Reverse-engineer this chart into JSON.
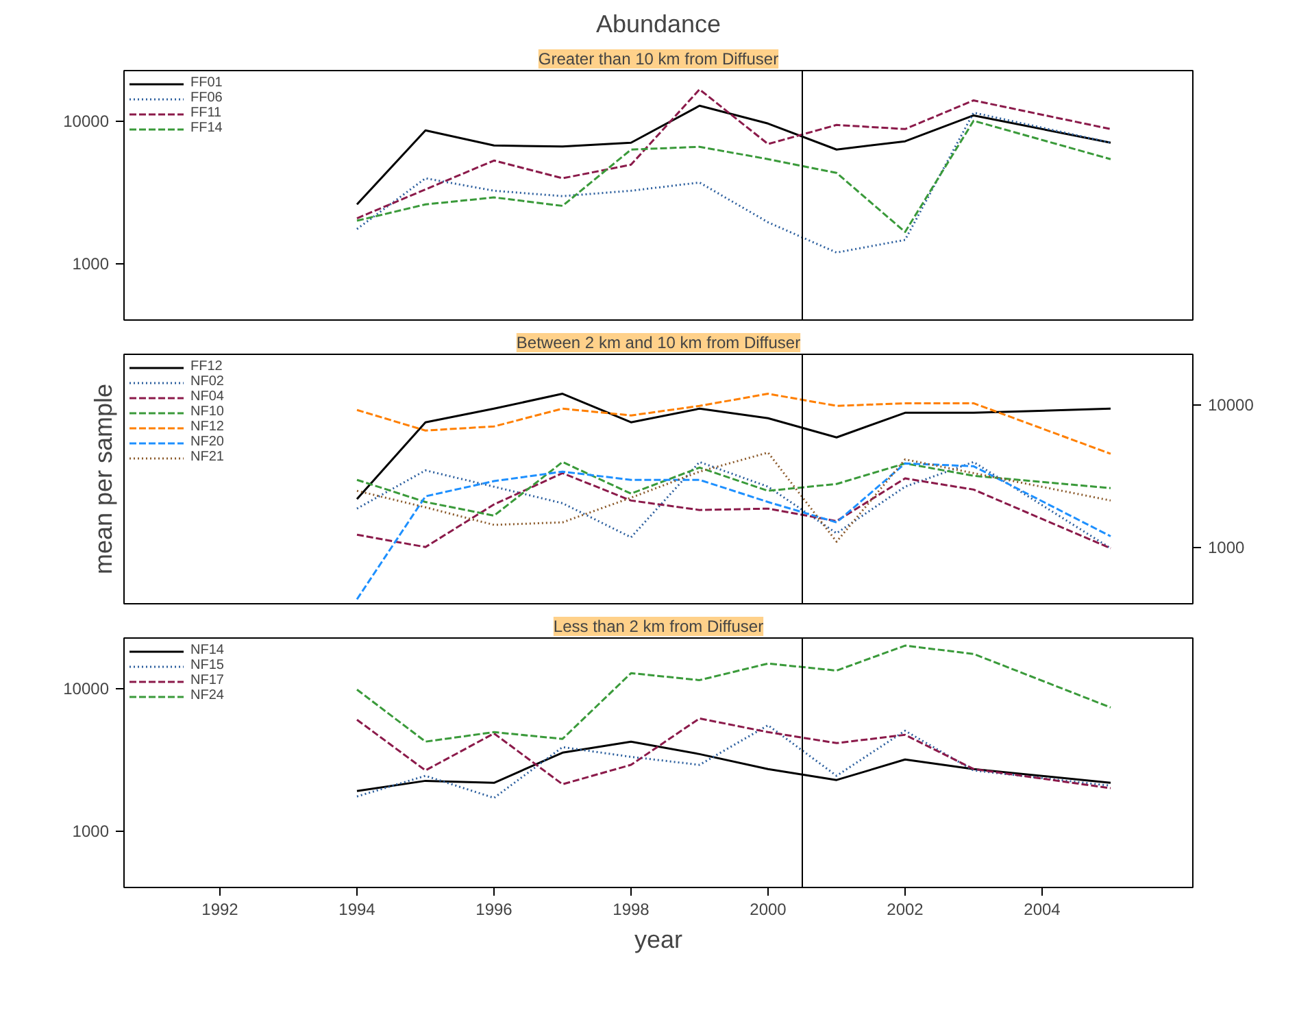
{
  "chart_data": [
    {
      "type": "line",
      "title": "Abundance",
      "subtitle": "Greater than 10 km from Diffuser",
      "x": [
        1994,
        1995,
        1996,
        1997,
        1998,
        1999,
        2000,
        2001,
        2002,
        2003,
        2005
      ],
      "log": true,
      "xlim": [
        1990.6,
        2006.2
      ],
      "xticks": [
        1992,
        1994,
        1996,
        1998,
        2000,
        2002,
        2004
      ],
      "ylim": [
        400,
        22500
      ],
      "yticks": [
        1000,
        10000
      ],
      "tick_labels": "y",
      "legend": "top left",
      "ref_lines": [
        {
          "axis": "x",
          "value": 2000.5,
          "color": "#000000"
        }
      ],
      "series": [
        {
          "name": "FF01",
          "color": "#000000",
          "line_style": "solid",
          "values": [
            2590,
            8570,
            6710,
            6600,
            7020,
            12750,
            9560,
            6280,
            7180,
            10900,
            7020
          ]
        },
        {
          "name": "FF06",
          "color": "#2c5f9e",
          "line_style": "dotted",
          "values": [
            1740,
            3950,
            3230,
            2960,
            3230,
            3690,
            1940,
            1190,
            1460,
            11400,
            7020
          ]
        },
        {
          "name": "FF11",
          "color": "#8b1a4a",
          "line_style": "dashed",
          "values": [
            2070,
            3300,
            5260,
            3950,
            4920,
            16600,
            6870,
            9350,
            8750,
            13900,
            8750
          ]
        },
        {
          "name": "FF14",
          "color": "#3a9a3a",
          "line_style": "dashed",
          "values": [
            1990,
            2590,
            2900,
            2530,
            6280,
            6570,
            5380,
            4310,
            1660,
            10000,
            5380
          ]
        }
      ]
    },
    {
      "type": "line",
      "subtitle": "Between 2 km and 10 km from Diffuser",
      "ylabel": "mean per sample",
      "x": [
        1994,
        1995,
        1996,
        1997,
        1998,
        1999,
        2000,
        2001,
        2002,
        2003,
        2005
      ],
      "log": true,
      "xlim": [
        1990.6,
        2006.2
      ],
      "xticks": [
        1992,
        1994,
        1996,
        1998,
        2000,
        2002,
        2004
      ],
      "ylim": [
        400,
        22500
      ],
      "yticks": [
        1000,
        10000
      ],
      "tick_labels": "y",
      "legend": "top left",
      "ref_lines": [
        {
          "axis": "x",
          "value": 2000.5,
          "color": "#000000"
        }
      ],
      "series": [
        {
          "name": "FF12",
          "color": "#000000",
          "line_style": "solid",
          "values": [
            2170,
            7500,
            9350,
            11900,
            7500,
            9350,
            8010,
            5880,
            8750,
            8750,
            9350
          ]
        },
        {
          "name": "NF02",
          "color": "#2c5f9e",
          "line_style": "dotted",
          "values": [
            1860,
            3450,
            2650,
            2030,
            1170,
            3950,
            2650,
            1250,
            2650,
            3950,
            980
          ]
        },
        {
          "name": "NF04",
          "color": "#8b1a4a",
          "line_style": "dashed",
          "values": [
            1220,
            1000,
            1990,
            3300,
            2120,
            1820,
            1860,
            1520,
            3030,
            2530,
            980
          ]
        },
        {
          "name": "NF10",
          "color": "#3a9a3a",
          "line_style": "dashed",
          "values": [
            2960,
            2070,
            1660,
            3950,
            2370,
            3610,
            2480,
            2770,
            3860,
            3160,
            2590
          ]
        },
        {
          "name": "NF12",
          "color": "#ff7f00",
          "line_style": "dashed",
          "values": [
            9150,
            6570,
            7020,
            9350,
            8380,
            9780,
            11900,
            9780,
            10200,
            10200,
            4510
          ]
        },
        {
          "name": "NF20",
          "color": "#1e90ff",
          "line_style": "dashed",
          "values": [
            430,
            2270,
            2900,
            3380,
            2960,
            2960,
            2070,
            1490,
            3860,
            3690,
            1190
          ]
        },
        {
          "name": "NF21",
          "color": "#8b5a2b",
          "line_style": "dotted",
          "values": [
            2480,
            1900,
            1430,
            1490,
            2220,
            3380,
            4600,
            1090,
            4120,
            3300,
            2120
          ]
        }
      ]
    },
    {
      "type": "line",
      "subtitle": "Less than 2 km from Diffuser",
      "xlabel": "year",
      "x": [
        1994,
        1995,
        1996,
        1997,
        1998,
        1999,
        2000,
        2001,
        2002,
        2003,
        2005
      ],
      "log": true,
      "xlim": [
        1990.6,
        2006.2
      ],
      "xticks": [
        1992,
        1994,
        1996,
        1998,
        2000,
        2002,
        2004
      ],
      "ylim": [
        400,
        22500
      ],
      "yticks": [
        1000,
        10000
      ],
      "legend": "top left",
      "ref_lines": [
        {
          "axis": "x",
          "value": 2000.5,
          "color": "#000000"
        }
      ],
      "series": [
        {
          "name": "NF14",
          "color": "#000000",
          "line_style": "solid",
          "values": [
            1900,
            2240,
            2170,
            3530,
            4220,
            3450,
            2710,
            2270,
            3160,
            2710,
            2170
          ]
        },
        {
          "name": "NF15",
          "color": "#2c5f9e",
          "line_style": "dotted",
          "values": [
            1740,
            2430,
            1700,
            3860,
            3300,
            2900,
            5500,
            2430,
            5030,
            2650,
            2070
          ]
        },
        {
          "name": "NF17",
          "color": "#8b1a4a",
          "line_style": "dashed",
          "values": [
            6010,
            2650,
            4820,
            2120,
            2900,
            6140,
            4920,
            4120,
            4710,
            2710,
            1990
          ]
        },
        {
          "name": "NF24",
          "color": "#3a9a3a",
          "line_style": "dashed",
          "values": [
            9780,
            4220,
            4920,
            4410,
            12750,
            11400,
            14900,
            13300,
            19900,
            17400,
            7330
          ]
        }
      ]
    }
  ]
}
